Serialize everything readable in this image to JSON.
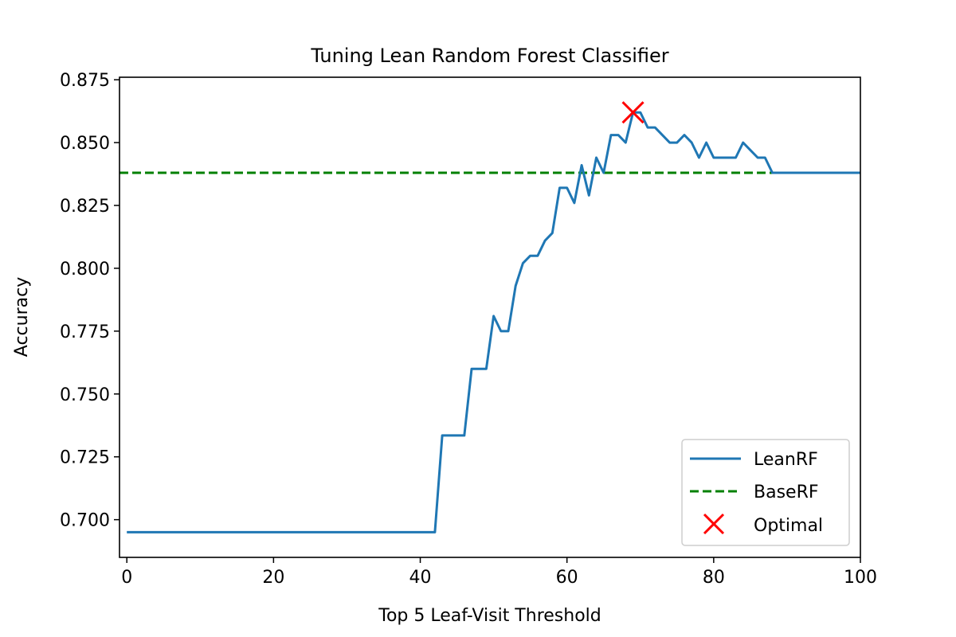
{
  "chart_data": {
    "type": "line",
    "title": "Tuning Lean Random Forest Classifier",
    "xlabel": "Top 5 Leaf-Visit Threshold",
    "ylabel": "Accuracy",
    "xlim": [
      -1,
      100
    ],
    "ylim": [
      0.685,
      0.876
    ],
    "xticks": [
      0,
      20,
      40,
      60,
      80,
      100
    ],
    "yticks": [
      0.7,
      0.725,
      0.75,
      0.775,
      0.8,
      0.825,
      0.85,
      0.875
    ],
    "ytick_labels": [
      "0.700",
      "0.725",
      "0.750",
      "0.775",
      "0.800",
      "0.825",
      "0.850",
      "0.875"
    ],
    "grid": false,
    "legend_position": "bottom-right",
    "series": [
      {
        "name": "LeanRF",
        "kind": "line",
        "color": "#1f77b4",
        "x": [
          0,
          1,
          2,
          3,
          4,
          5,
          6,
          7,
          8,
          9,
          10,
          11,
          12,
          13,
          14,
          15,
          16,
          17,
          18,
          19,
          20,
          21,
          22,
          23,
          24,
          25,
          26,
          27,
          28,
          29,
          30,
          31,
          32,
          33,
          34,
          35,
          36,
          37,
          38,
          39,
          40,
          41,
          42,
          43,
          44,
          45,
          46,
          47,
          48,
          49,
          50,
          51,
          52,
          53,
          54,
          55,
          56,
          57,
          58,
          59,
          60,
          61,
          62,
          63,
          64,
          65,
          66,
          67,
          68,
          69,
          70,
          71,
          72,
          73,
          74,
          75,
          76,
          77,
          78,
          79,
          80,
          81,
          82,
          83,
          84,
          85,
          86,
          87,
          88,
          89,
          90,
          91,
          92,
          93,
          94,
          95,
          96,
          97,
          98,
          99,
          100
        ],
        "y": [
          0.695,
          0.695,
          0.695,
          0.695,
          0.695,
          0.695,
          0.695,
          0.695,
          0.695,
          0.695,
          0.695,
          0.695,
          0.695,
          0.695,
          0.695,
          0.695,
          0.695,
          0.695,
          0.695,
          0.695,
          0.695,
          0.695,
          0.695,
          0.695,
          0.695,
          0.695,
          0.695,
          0.695,
          0.695,
          0.695,
          0.695,
          0.695,
          0.695,
          0.695,
          0.695,
          0.695,
          0.695,
          0.695,
          0.695,
          0.695,
          0.695,
          0.695,
          0.695,
          0.7335,
          0.7335,
          0.7335,
          0.7335,
          0.76,
          0.76,
          0.76,
          0.781,
          0.775,
          0.775,
          0.793,
          0.802,
          0.805,
          0.805,
          0.811,
          0.814,
          0.832,
          0.832,
          0.826,
          0.841,
          0.829,
          0.844,
          0.838,
          0.853,
          0.853,
          0.85,
          0.862,
          0.862,
          0.856,
          0.856,
          0.853,
          0.85,
          0.85,
          0.853,
          0.85,
          0.844,
          0.85,
          0.844,
          0.844,
          0.844,
          0.844,
          0.85,
          0.847,
          0.844,
          0.844,
          0.838,
          0.838,
          0.838,
          0.838,
          0.838,
          0.838,
          0.838,
          0.838,
          0.838,
          0.838,
          0.838,
          0.838,
          0.838
        ]
      },
      {
        "name": "BaseRF",
        "kind": "hline",
        "color": "#008000",
        "y": 0.838
      },
      {
        "name": "Optimal",
        "kind": "marker",
        "color": "#ff0000",
        "x": 69,
        "y": 0.862
      }
    ]
  }
}
